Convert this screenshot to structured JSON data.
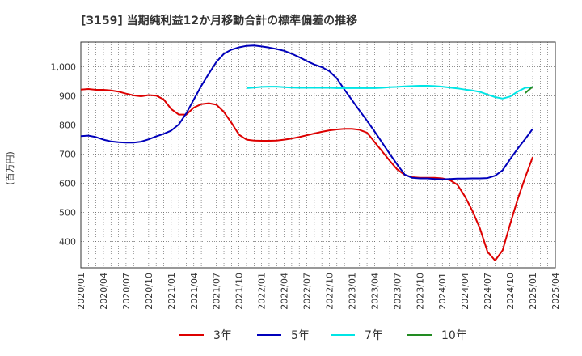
{
  "chart_data": {
    "type": "line",
    "title": "[3159]  当期純利益12か月移動合計の標準偏差の推移",
    "ylabel": "(百万円)",
    "xlabel": "",
    "ylim": [
      310,
      1085
    ],
    "yticks": [
      400,
      500,
      600,
      700,
      800,
      900,
      1000
    ],
    "ytick_labels": [
      "400",
      "500",
      "600",
      "700",
      "800",
      "900",
      "1,000"
    ],
    "xlim": [
      "2020-01",
      "2025-04"
    ],
    "xtick_labels": [
      "2020/01",
      "2020/04",
      "2020/07",
      "2020/10",
      "2021/01",
      "2021/04",
      "2021/07",
      "2021/10",
      "2022/01",
      "2022/04",
      "2022/07",
      "2022/10",
      "2023/01",
      "2023/04",
      "2023/07",
      "2023/10",
      "2024/01",
      "2024/04",
      "2024/07",
      "2024/10",
      "2025/01",
      "2025/04"
    ],
    "grid": true,
    "legend_position": "bottom",
    "series": [
      {
        "name": "3年",
        "color": "#dd0000",
        "x": [
          "2020-01",
          "2020-02",
          "2020-03",
          "2020-04",
          "2020-05",
          "2020-06",
          "2020-07",
          "2020-08",
          "2020-09",
          "2020-10",
          "2020-11",
          "2020-12",
          "2021-01",
          "2021-02",
          "2021-03",
          "2021-04",
          "2021-05",
          "2021-06",
          "2021-07",
          "2021-08",
          "2021-09",
          "2021-10",
          "2021-11",
          "2021-12",
          "2022-01",
          "2022-02",
          "2022-03",
          "2022-04",
          "2022-05",
          "2022-06",
          "2022-07",
          "2022-08",
          "2022-09",
          "2022-10",
          "2022-11",
          "2022-12",
          "2023-01",
          "2023-02",
          "2023-03",
          "2023-04",
          "2023-05",
          "2023-06",
          "2023-07",
          "2023-08",
          "2023-09",
          "2023-10",
          "2023-11",
          "2023-12",
          "2024-01",
          "2024-02",
          "2024-03",
          "2024-04",
          "2024-05",
          "2024-06",
          "2024-07",
          "2024-08",
          "2024-09",
          "2024-10",
          "2024-11",
          "2024-12",
          "2025-01"
        ],
        "values": [
          922,
          924,
          921,
          921,
          919,
          915,
          908,
          902,
          899,
          903,
          901,
          888,
          855,
          836,
          836,
          860,
          872,
          875,
          870,
          845,
          808,
          767,
          750,
          747,
          746,
          746,
          747,
          750,
          754,
          759,
          765,
          771,
          777,
          782,
          785,
          787,
          787,
          784,
          774,
          742,
          710,
          678,
          648,
          629,
          621,
          619,
          619,
          619,
          617,
          611,
          595,
          555,
          505,
          445,
          365,
          335,
          370,
          460,
          545,
          620,
          690
        ]
      },
      {
        "name": "5年",
        "color": "#0000bb",
        "x": [
          "2020-01",
          "2020-02",
          "2020-03",
          "2020-04",
          "2020-05",
          "2020-06",
          "2020-07",
          "2020-08",
          "2020-09",
          "2020-10",
          "2020-11",
          "2020-12",
          "2021-01",
          "2021-02",
          "2021-03",
          "2021-04",
          "2021-05",
          "2021-06",
          "2021-07",
          "2021-08",
          "2021-09",
          "2021-10",
          "2021-11",
          "2021-12",
          "2022-01",
          "2022-02",
          "2022-03",
          "2022-04",
          "2022-05",
          "2022-06",
          "2022-07",
          "2022-08",
          "2022-09",
          "2022-10",
          "2022-11",
          "2022-12",
          "2023-01",
          "2023-02",
          "2023-03",
          "2023-04",
          "2023-05",
          "2023-06",
          "2023-07",
          "2023-08",
          "2023-09",
          "2023-10",
          "2023-11",
          "2023-12",
          "2024-01",
          "2024-02",
          "2024-03",
          "2024-04",
          "2024-05",
          "2024-06",
          "2024-07",
          "2024-08",
          "2024-09",
          "2024-10",
          "2024-11",
          "2024-12",
          "2025-01"
        ],
        "values": [
          762,
          764,
          759,
          750,
          744,
          741,
          740,
          740,
          743,
          751,
          761,
          770,
          781,
          802,
          840,
          888,
          935,
          977,
          1017,
          1045,
          1059,
          1067,
          1072,
          1073,
          1070,
          1066,
          1061,
          1055,
          1045,
          1033,
          1020,
          1008,
          999,
          985,
          960,
          922,
          886,
          850,
          815,
          778,
          740,
          702,
          665,
          630,
          619,
          617,
          617,
          615,
          614,
          615,
          616,
          616,
          617,
          617,
          618,
          626,
          645,
          683,
          719,
          752,
          787
        ]
      },
      {
        "name": "7年",
        "color": "#00e5e5",
        "x": [
          "2021-11",
          "2021-12",
          "2022-01",
          "2022-02",
          "2022-03",
          "2022-04",
          "2022-05",
          "2022-06",
          "2022-07",
          "2022-08",
          "2022-09",
          "2022-10",
          "2022-11",
          "2022-12",
          "2023-01",
          "2023-02",
          "2023-03",
          "2023-04",
          "2023-05",
          "2023-06",
          "2023-07",
          "2023-08",
          "2023-09",
          "2023-10",
          "2023-11",
          "2023-12",
          "2024-01",
          "2024-02",
          "2024-03",
          "2024-04",
          "2024-05",
          "2024-06",
          "2024-07",
          "2024-08",
          "2024-09",
          "2024-10",
          "2024-11",
          "2024-12",
          "2025-01"
        ],
        "values": [
          927,
          929,
          931,
          932,
          932,
          930,
          929,
          928,
          928,
          928,
          928,
          928,
          927,
          927,
          927,
          927,
          927,
          927,
          928,
          930,
          931,
          933,
          934,
          935,
          935,
          934,
          932,
          929,
          926,
          922,
          919,
          914,
          905,
          896,
          891,
          898,
          915,
          928,
          930
        ]
      },
      {
        "name": "10年",
        "color": "#228b22",
        "x": [
          "2024-12",
          "2025-01"
        ],
        "values": [
          910,
          932
        ]
      }
    ]
  }
}
